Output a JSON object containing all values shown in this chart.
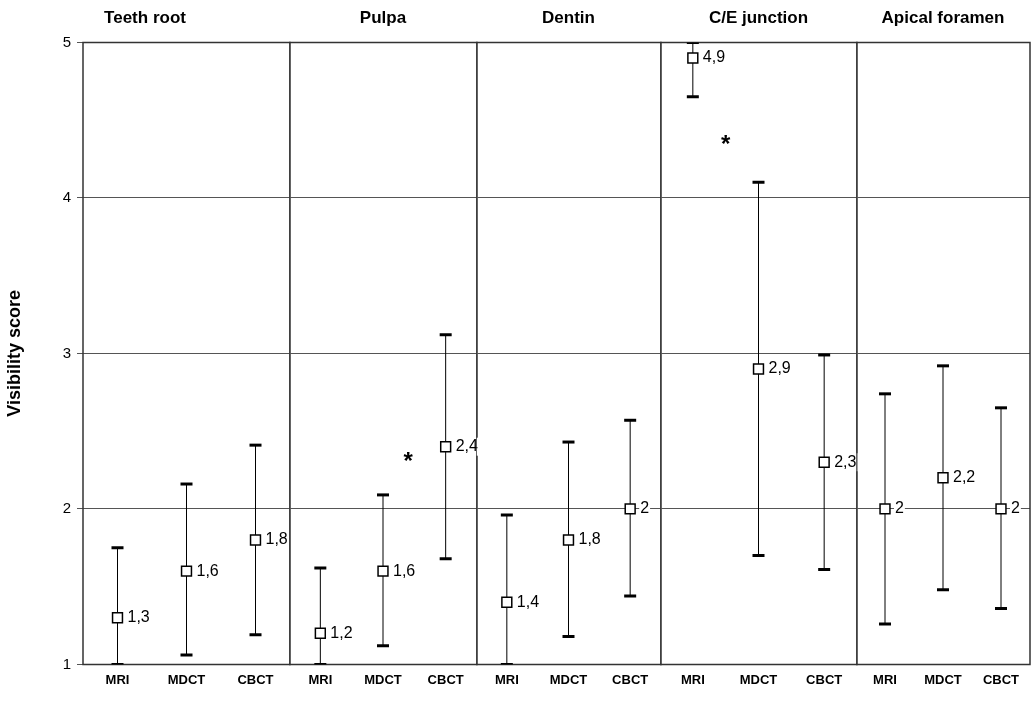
{
  "chart_data": [
    {
      "type": "scatter",
      "title": "Teeth root",
      "ylabel": "Visibility score",
      "categories": [
        "MRI",
        "MDCT",
        "CBCT"
      ],
      "values": [
        1.3,
        1.6,
        1.8
      ],
      "errors": [
        [
          1,
          1.75
        ],
        [
          1.06,
          2.16
        ],
        [
          1.19,
          2.41
        ]
      ],
      "value_labels": [
        "1,3",
        "1,6",
        "1,8"
      ],
      "color": "#000000",
      "marker": "square",
      "ylim": [
        1,
        5
      ],
      "yticks": [
        1,
        2,
        3,
        4,
        5
      ],
      "grid": "y",
      "legend": false
    },
    {
      "type": "scatter",
      "title": "Pulpa",
      "categories": [
        "MRI",
        "MDCT",
        "CBCT"
      ],
      "values": [
        1.2,
        1.6,
        2.4
      ],
      "errors": [
        [
          1,
          1.62
        ],
        [
          1.12,
          2.09
        ],
        [
          1.68,
          3.12
        ]
      ],
      "value_labels": [
        "1,2",
        "1,6",
        "2,4"
      ],
      "color": "#000000",
      "marker": "square",
      "ylim": [
        1,
        5
      ],
      "yticks": [
        1,
        2,
        3,
        4,
        5
      ],
      "grid": "y",
      "legend": false,
      "tick_labels": "x",
      "annotations": [
        {
          "text": "*",
          "x": "CBCT",
          "y": 2.34
        }
      ]
    },
    {
      "type": "scatter",
      "title": "Dentin",
      "categories": [
        "MRI",
        "MDCT",
        "CBCT"
      ],
      "values": [
        1.4,
        1.8,
        2
      ],
      "errors": [
        [
          1,
          1.96
        ],
        [
          1.18,
          2.43
        ],
        [
          1.44,
          2.57
        ]
      ],
      "value_labels": [
        "1,4",
        "1,8",
        "2"
      ],
      "color": "#000000",
      "marker": "square",
      "ylim": [
        1,
        5
      ],
      "yticks": [
        1,
        2,
        3,
        4,
        5
      ],
      "grid": "y",
      "legend": false,
      "tick_labels": "x"
    },
    {
      "type": "scatter",
      "title": "C/E junction",
      "categories": [
        "MRI",
        "MDCT",
        "CBCT"
      ],
      "values": [
        4.9,
        2.9,
        2.3
      ],
      "errors": [
        [
          4.65,
          5
        ],
        [
          1.7,
          4.1
        ],
        [
          1.61,
          2.99
        ]
      ],
      "value_labels": [
        "4,9",
        "2,9",
        "2,3"
      ],
      "color": "#000000",
      "marker": "square",
      "ylim": [
        1,
        5
      ],
      "yticks": [
        1,
        2,
        3,
        4,
        5
      ],
      "grid": "y",
      "legend": false,
      "tick_labels": "x",
      "annotations": [
        "*"
      ]
    },
    {
      "type": "scatter",
      "title": "Apical foramen",
      "categories": [
        "MRI",
        "MDCT",
        "CBCT"
      ],
      "values": [
        2,
        2.2,
        2
      ],
      "errors": [
        [
          1.26,
          2.74
        ],
        [
          1.48,
          2.92
        ],
        [
          1.36,
          2.65
        ]
      ],
      "value_labels": [
        "2",
        "2,2",
        "2"
      ],
      "color": "#000000",
      "marker": "square",
      "ylim": [
        1,
        5
      ],
      "yticks": [
        1,
        2,
        3,
        4,
        5
      ],
      "grid": "y",
      "legend": false,
      "tick_labels": "x"
    }
  ]
}
